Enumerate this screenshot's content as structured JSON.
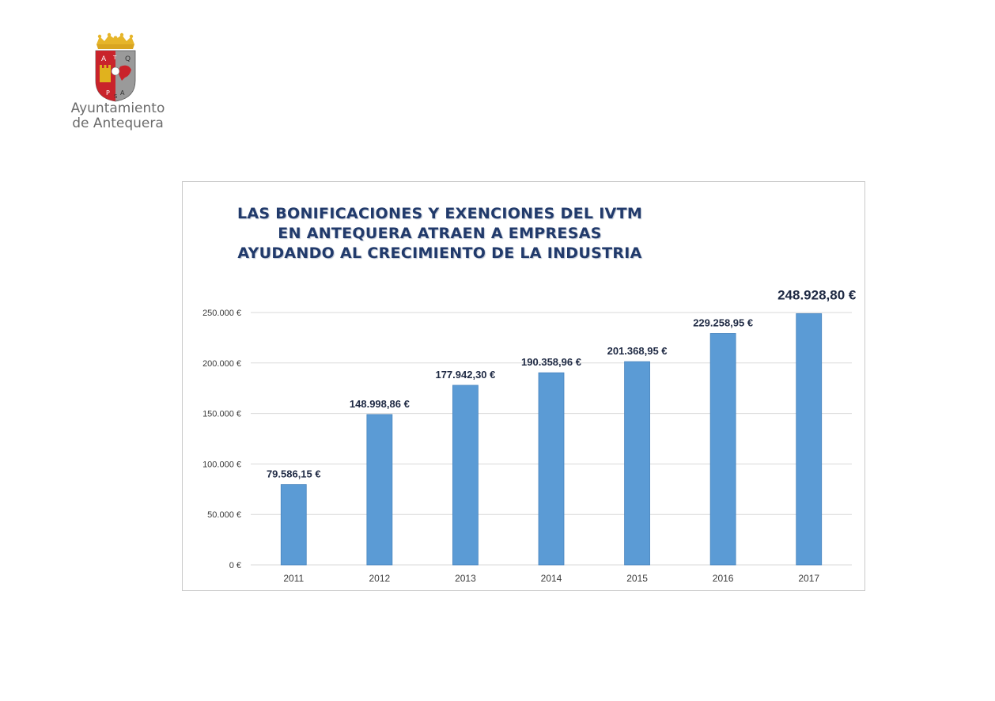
{
  "logo": {
    "line1": "Ayuntamiento",
    "line2": "de Antequera",
    "shield_letters": [
      "A",
      "T",
      "Q",
      "P",
      "S",
      "A"
    ],
    "colors": {
      "crown": "#d9a520",
      "red": "#c9232b",
      "gray": "#9a9a9a",
      "gold": "#e0b21e"
    }
  },
  "chart_data": {
    "type": "bar",
    "title": [
      "LAS BONIFICACIONES Y EXENCIONES DEL IVTM",
      "EN ANTEQUERA ATRAEN A EMPRESAS",
      "AYUDANDO AL CRECIMIENTO DE LA INDUSTRIA"
    ],
    "categories": [
      "2011",
      "2012",
      "2013",
      "2014",
      "2015",
      "2016",
      "2017"
    ],
    "values": [
      79586.15,
      148998.86,
      177942.3,
      190358.96,
      201368.95,
      229258.95,
      248928.8
    ],
    "value_labels": [
      "79.586,15 €",
      "148.998,86 €",
      "177.942,30 €",
      "190.358,96 €",
      "201.368,95 €",
      "229.258,95 €",
      "248.928,80 €"
    ],
    "ylim": [
      0,
      250000
    ],
    "yticks": [
      0,
      50000,
      100000,
      150000,
      200000,
      250000
    ],
    "ytick_labels": [
      "0 €",
      "50.000 €",
      "100.000 €",
      "150.000 €",
      "200.000 €",
      "250.000 €"
    ],
    "grid": true,
    "xlabel": "",
    "ylabel": "",
    "colors": {
      "bar": "#5b9bd5",
      "bar_edge": "#4a86bf",
      "grid": "#d9d9d9",
      "label": "#1f2a44",
      "title": "#213a6b"
    }
  }
}
